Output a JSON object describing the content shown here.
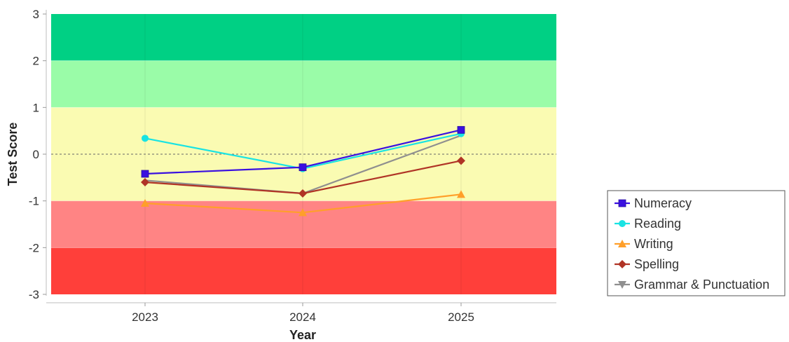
{
  "chart_data": {
    "type": "line",
    "title": "",
    "xlabel": "Year",
    "ylabel": "Test Score",
    "categories": [
      "2023",
      "2024",
      "2025"
    ],
    "ylim": [
      -3,
      3
    ],
    "yticks": [
      "3",
      "2",
      "1",
      "0",
      "-1",
      "-2",
      "-3"
    ],
    "bands": [
      {
        "from": 2,
        "to": 3,
        "color": "#00d084"
      },
      {
        "from": 1,
        "to": 2,
        "color": "#9afca8"
      },
      {
        "from": -1,
        "to": 1,
        "color": "#fafbb2"
      },
      {
        "from": -2,
        "to": -1,
        "color": "#ff8484"
      },
      {
        "from": -3,
        "to": -2,
        "color": "#ff3f3a"
      }
    ],
    "reference_line": 0,
    "legend_position": "right",
    "series": [
      {
        "name": "Numeracy",
        "color": "#3a10e0",
        "marker": "square",
        "values": [
          -0.42,
          -0.28,
          0.52
        ]
      },
      {
        "name": "Reading",
        "color": "#19e3e3",
        "marker": "circle",
        "values": [
          0.34,
          -0.31,
          0.44
        ]
      },
      {
        "name": "Writing",
        "color": "#ff9f2a",
        "marker": "triangle-up",
        "values": [
          -1.05,
          -1.25,
          -0.86
        ]
      },
      {
        "name": "Spelling",
        "color": "#b03426",
        "marker": "diamond",
        "values": [
          -0.6,
          -0.84,
          -0.14
        ]
      },
      {
        "name": "Grammar & Punctuation",
        "color": "#8f8f8f",
        "marker": "triangle-down",
        "values": [
          -0.56,
          -0.84,
          0.4
        ]
      }
    ]
  }
}
